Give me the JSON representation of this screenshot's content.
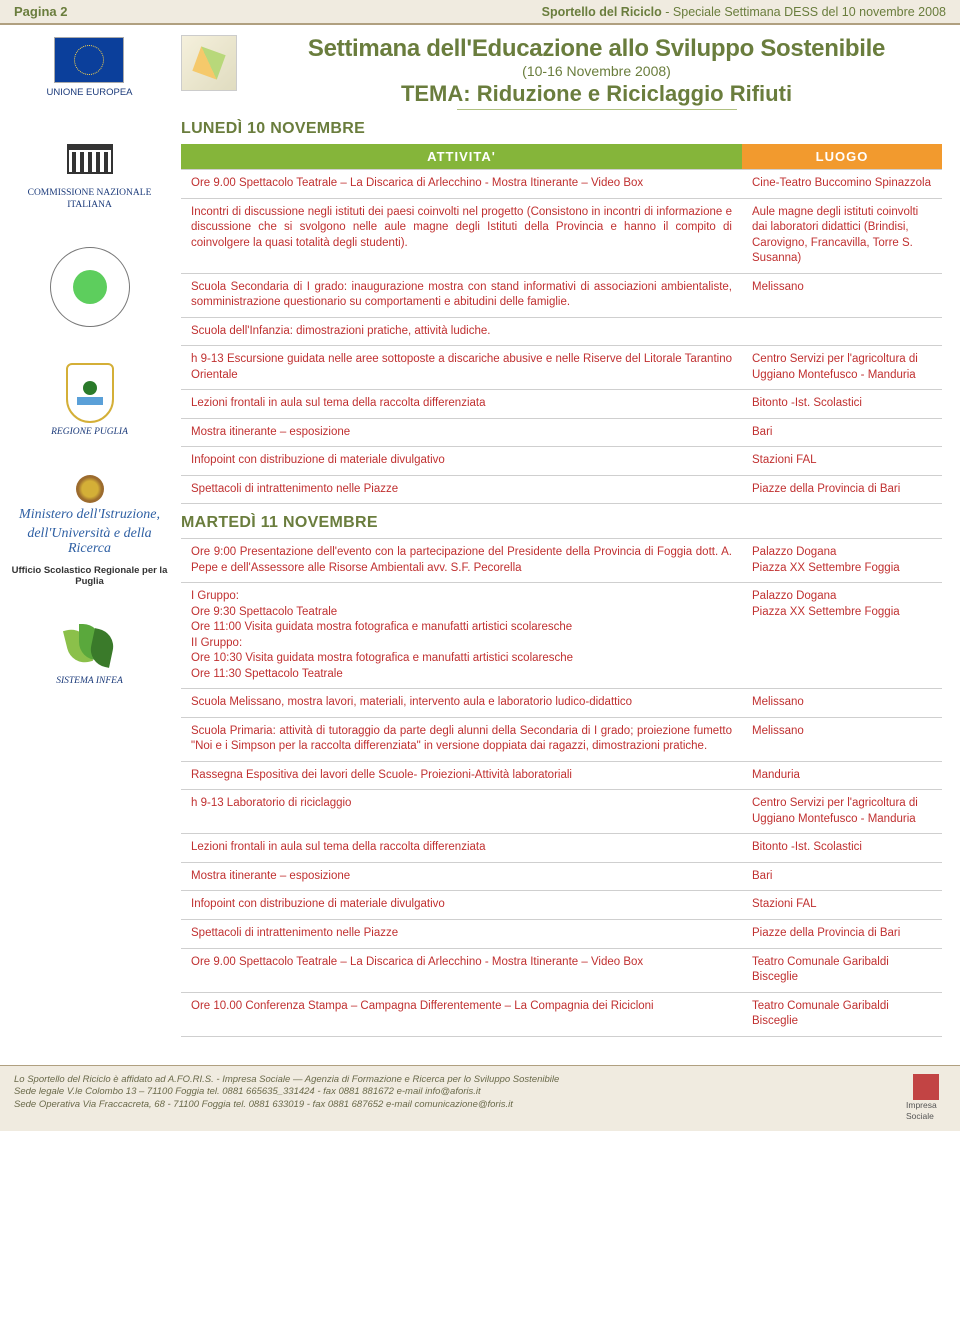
{
  "header": {
    "page_label": "Pagina 2",
    "sportello_bold": "Sportello del Riciclo",
    "sportello_thin": " - Speciale Settimana DESS del 10 novembre 2008"
  },
  "sidebar": {
    "eu": "UNIONE EUROPEA",
    "unesco": "COMMISSIONE NAZIONALE ITALIANA",
    "puglia": "REGIONE PUGLIA",
    "ministero_l1": "Ministero dell'Istruzione,",
    "ministero_l2": "dell'Università e della Ricerca",
    "ufficio": "Ufficio Scolastico Regionale per la Puglia",
    "infea": "SISTEMA INFEA"
  },
  "title": {
    "main": "Settimana dell'Educazione allo Sviluppo Sostenibile",
    "sub": "(10-16 Novembre 2008)",
    "tema": "TEMA: Riduzione e Riciclaggio Rifiuti"
  },
  "columns": {
    "attivita": "ATTIVITA'",
    "luogo": "LUOGO"
  },
  "day1": {
    "heading": "LUNEDÌ 10 NOVEMBRE",
    "rows": [
      {
        "a": "Ore 9.00 Spettacolo Teatrale – La Discarica di Arlecchino - Mostra Itinerante – Video Box",
        "l": "Cine-Teatro Buccomino Spinazzola"
      },
      {
        "a": "Incontri di discussione negli istituti dei paesi coinvolti nel progetto (Consistono in incontri di informazione e discussione che si svolgono nelle aule magne degli Istituti della Provincia e hanno il compito di coinvolgere la quasi totalità degli studenti).",
        "l": "Aule magne degli istituti coinvolti dai laboratori didattici (Brindisi, Carovigno, Francavilla, Torre S. Susanna)"
      },
      {
        "a": "Scuola Secondaria di I grado: inaugurazione mostra con stand informativi di associazioni ambientaliste, somministrazione questionario su comportamenti e abitudini delle famiglie.",
        "l": "Melissano"
      },
      {
        "a": "Scuola dell'Infanzia: dimostrazioni pratiche, attività ludiche.",
        "l": ""
      },
      {
        "a": "h 9-13 Escursione guidata nelle aree sottoposte a discariche abusive e nelle Riserve del Litorale Tarantino Orientale",
        "l": "Centro Servizi per l'agricoltura di Uggiano Montefusco - Manduria"
      },
      {
        "a": "Lezioni frontali in aula sul tema della raccolta differenziata",
        "l": "Bitonto -Ist. Scolastici"
      },
      {
        "a": "Mostra itinerante – esposizione",
        "l": "Bari"
      },
      {
        "a": "Infopoint con distribuzione di materiale divulgativo",
        "l": "Stazioni FAL"
      },
      {
        "a": "Spettacoli di intrattenimento nelle Piazze",
        "l": "Piazze della Provincia di Bari"
      }
    ]
  },
  "day2": {
    "heading": "MARTEDÌ 11 NOVEMBRE",
    "rows": [
      {
        "a": "Ore 9:00 Presentazione dell'evento con la partecipazione del Presidente della Provincia di Foggia dott. A. Pepe e dell'Assessore alle Risorse Ambientali avv. S.F. Pecorella",
        "l": "Palazzo Dogana\nPiazza XX Settembre Foggia"
      },
      {
        "a": "I Gruppo:\nOre 9:30 Spettacolo Teatrale\nOre 11:00 Visita guidata mostra fotografica e manufatti artistici scolaresche\nII Gruppo:\nOre 10:30 Visita guidata mostra fotografica e manufatti artistici scolaresche\nOre 11:30 Spettacolo Teatrale",
        "l": "Palazzo Dogana\nPiazza XX Settembre Foggia"
      },
      {
        "a": "Scuola Melissano, mostra lavori, materiali, intervento aula e laboratorio ludico-didattico",
        "l": "Melissano"
      },
      {
        "a": "Scuola Primaria: attività di tutoraggio da parte degli alunni della Secondaria di I grado; proiezione fumetto \"Noi e i Simpson per la raccolta differenziata\" in versione doppiata dai ragazzi, dimostrazioni pratiche.",
        "l": "Melissano"
      },
      {
        "a": "Rassegna Espositiva dei lavori delle Scuole- Proiezioni-Attività laboratoriali",
        "l": "Manduria"
      },
      {
        "a": "h 9-13 Laboratorio di riciclaggio",
        "l": "Centro Servizi per l'agricoltura di Uggiano Montefusco - Manduria"
      },
      {
        "a": "Lezioni frontali in aula sul tema della raccolta differenziata",
        "l": "Bitonto -Ist. Scolastici"
      },
      {
        "a": "Mostra itinerante – esposizione",
        "l": "Bari"
      },
      {
        "a": "Infopoint con distribuzione di materiale divulgativo",
        "l": "Stazioni FAL"
      },
      {
        "a": "Spettacoli di intrattenimento nelle Piazze",
        "l": "Piazze della Provincia di Bari"
      },
      {
        "a": "Ore 9.00 Spettacolo Teatrale – La Discarica di Arlecchino - Mostra Itinerante – Video Box",
        "l": "Teatro Comunale Garibaldi Bisceglie"
      },
      {
        "a": "Ore 10.00 Conferenza Stampa – Campagna Differentemente – La Compagnia dei Ricicloni",
        "l": "Teatro Comunale Garibaldi Bisceglie"
      }
    ]
  },
  "footer": {
    "l1": "Lo Sportello del Riciclo è affidato ad A.FO.RI.S. - Impresa Sociale — Agenzia di Formazione e Ricerca per lo Sviluppo Sostenibile",
    "l2": "Sede legale V.le Colombo 13 – 71100 Foggia tel. 0881 665635_331424 - fax 0881 881672 e-mail info@aforis.it",
    "l3": "Sede Operativa Via Fraccacreta, 68 - 71100 Foggia tel. 0881 633019 - fax 0881 687652 e-mail comunicazione@foris.it",
    "logo_label": "Impresa Sociale"
  },
  "colors": {
    "olive": "#6a7d3d",
    "red": "#c03030",
    "green_header": "#85b53a",
    "orange_header": "#f29a2e",
    "sand_bg": "#f0ebe0"
  }
}
